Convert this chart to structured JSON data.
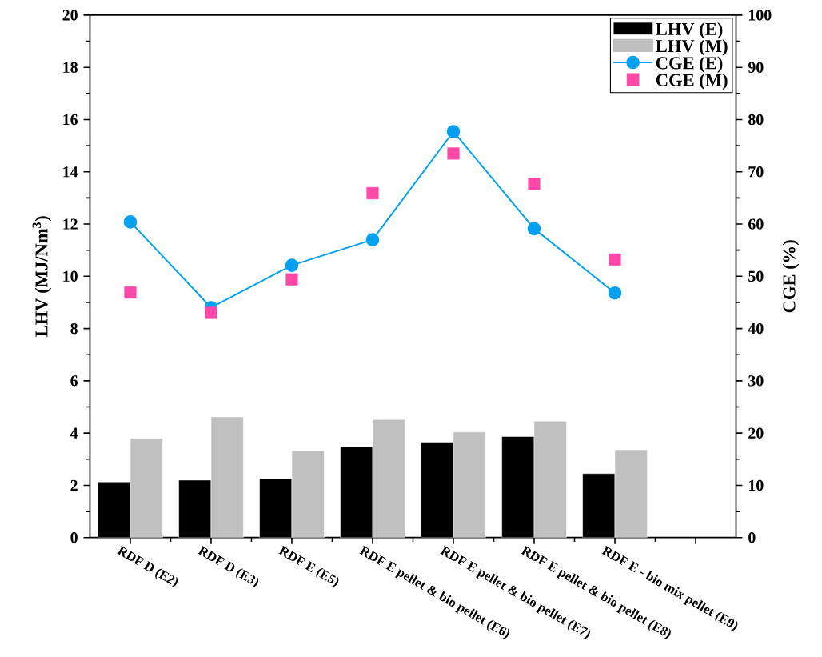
{
  "chart_data": {
    "type": "bar",
    "categories": [
      "RDF D (E2)",
      "RDF D (E3)",
      "RDF E (E5)",
      "RDF E pellet & bio pellet (E6)",
      "RDF E pellet & bio pellet (E7)",
      "RDF E pellet & bio pellet (E8)",
      "RDF E - bio mix pellet (E9)",
      null
    ],
    "ylabel": "LHV (MJ/Nm$^{3}$)",
    "y2label": "CGE (%)",
    "ylim": [
      0,
      20
    ],
    "yticks": [
      0,
      2,
      4,
      6,
      8,
      10,
      12,
      14,
      16,
      18,
      20
    ],
    "y2lim": [
      0,
      100
    ],
    "y2ticks": [
      0,
      10,
      20,
      30,
      40,
      50,
      60,
      70,
      80,
      90,
      100
    ],
    "legend": "top right",
    "series": [
      {
        "name": "LHV (E)",
        "color": "#000000",
        "values": [
          2.13,
          2.2,
          2.25,
          3.47,
          3.65,
          3.87,
          2.45,
          null
        ]
      },
      {
        "name": "LHV (M)",
        "color": "#c0c0c0",
        "values": [
          3.8,
          4.62,
          3.32,
          4.52,
          4.04,
          4.46,
          3.36,
          null
        ]
      },
      {
        "name": "CGE (E)",
        "type": "line",
        "axis": "y2",
        "color": "#00a0f0",
        "marker": "circle",
        "line_style": "solid",
        "values": [
          60.4,
          44.0,
          52.1,
          57.0,
          77.7,
          59.1,
          46.8,
          null
        ]
      },
      {
        "name": "CGE (M)",
        "type": "scatter",
        "axis": "y2",
        "color": "#ff48a8",
        "marker": "square",
        "values": [
          46.9,
          43.0,
          49.4,
          65.9,
          73.5,
          67.7,
          53.2,
          null
        ]
      }
    ]
  }
}
